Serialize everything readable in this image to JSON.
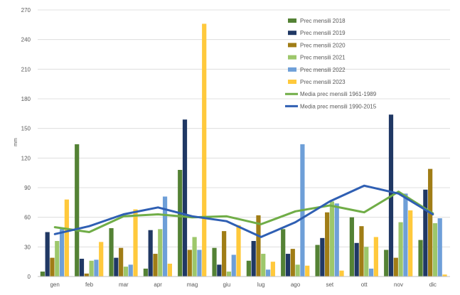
{
  "chart_data": {
    "type": "bar",
    "ylabel": "mm",
    "ylim": [
      0,
      270
    ],
    "yticks": [
      0,
      30,
      60,
      90,
      120,
      150,
      180,
      210,
      240,
      270
    ],
    "grid": true,
    "legend_position": "top-right",
    "categories": [
      "gen",
      "feb",
      "mar",
      "apr",
      "mag",
      "giu",
      "lug",
      "ago",
      "set",
      "ott",
      "nov",
      "dic"
    ],
    "series": [
      {
        "name": "Prec mensili 2018",
        "color": "#548235",
        "values": [
          5,
          134,
          49,
          8,
          108,
          29,
          16,
          48,
          32,
          60,
          27,
          37
        ]
      },
      {
        "name": "Prec mensili 2019",
        "color": "#203864",
        "values": [
          45,
          18,
          19,
          47,
          159,
          12,
          36,
          23,
          39,
          34,
          164,
          88
        ]
      },
      {
        "name": "Prec mensili 2020",
        "color": "#A07D16",
        "values": [
          19,
          3,
          29,
          23,
          27,
          46,
          62,
          28,
          65,
          51,
          19,
          109
        ]
      },
      {
        "name": "Prec mensili 2021",
        "color": "#9DC76B",
        "values": [
          36,
          16,
          10,
          48,
          40,
          5,
          23,
          12,
          76,
          30,
          55,
          54
        ]
      },
      {
        "name": "Prec mensili 2022",
        "color": "#6E9FD8",
        "values": [
          48,
          17,
          12,
          81,
          27,
          22,
          7,
          134,
          74,
          8,
          84,
          59
        ]
      },
      {
        "name": "Prec mensili 2023",
        "color": "#FFC93C",
        "values": [
          78,
          35,
          68,
          13,
          256,
          52,
          15,
          11,
          6,
          40,
          67,
          2
        ]
      }
    ],
    "lines": [
      {
        "name": "Media prec mensili 1961-1989",
        "color": "#70AD47",
        "values": [
          50,
          45,
          61,
          63,
          60,
          61,
          53,
          66,
          72,
          65,
          86,
          64
        ]
      },
      {
        "name": "Media prec mensili 1990-2015",
        "color": "#2F5FB3",
        "values": [
          43,
          51,
          63,
          70,
          61,
          56,
          40,
          55,
          76,
          92,
          84,
          63
        ]
      }
    ]
  }
}
